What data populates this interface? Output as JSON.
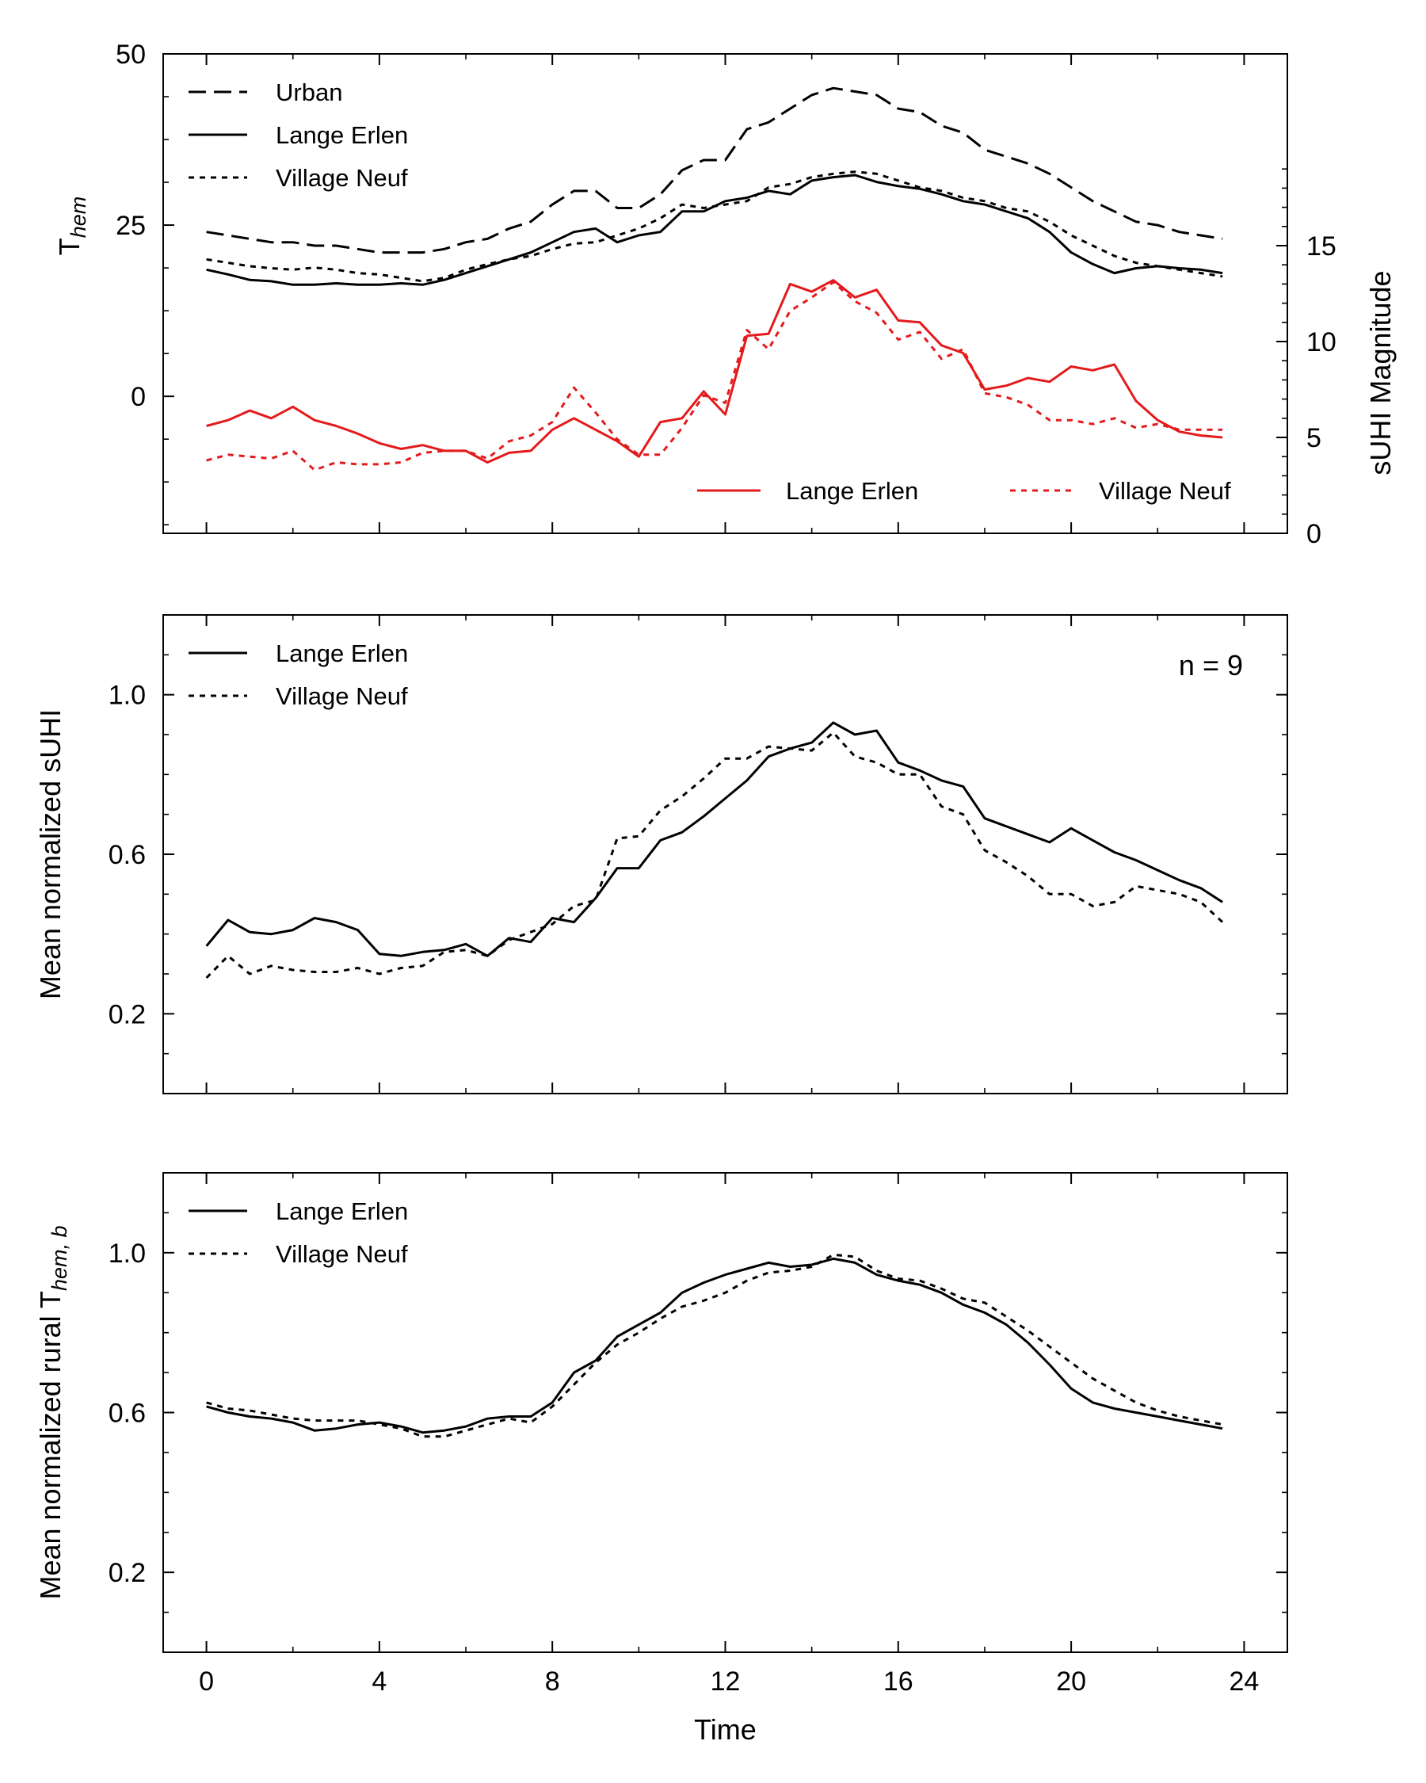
{
  "chart_data": [
    {
      "type": "line",
      "title": "",
      "xlabel": "",
      "ylabel": "T",
      "ylabel_sub": "hem",
      "y2label": "sUHI Magnitude",
      "xlim": [
        -1,
        25
      ],
      "ylim": [
        -20,
        50
      ],
      "y2lim": [
        0,
        25
      ],
      "x_ticks": [
        0,
        4,
        8,
        12,
        16,
        20,
        24
      ],
      "y_ticks": [
        0,
        25,
        50
      ],
      "y2_ticks": [
        0,
        5,
        10,
        15
      ],
      "x": [
        0,
        0.5,
        1,
        1.5,
        2,
        2.5,
        3,
        3.5,
        4,
        4.5,
        5,
        5.5,
        6,
        6.5,
        7,
        7.5,
        8,
        8.5,
        9,
        9.5,
        10,
        10.5,
        11,
        11.5,
        12,
        12.5,
        13,
        13.5,
        14,
        14.5,
        15,
        15.5,
        16,
        16.5,
        17,
        17.5,
        18,
        18.5,
        19,
        19.5,
        20,
        20.5,
        21,
        21.5,
        22,
        22.5,
        23,
        23.5
      ],
      "series": [
        {
          "name": "Urban",
          "axis": "left",
          "color": "#000000",
          "style": "dashed",
          "values": [
            24,
            23.5,
            23,
            22.5,
            22.5,
            22,
            22,
            21.5,
            21,
            21,
            21,
            21.5,
            22.5,
            23,
            24.5,
            25.5,
            28,
            30,
            30,
            27.5,
            27.5,
            29.5,
            33,
            34.5,
            34.5,
            39,
            40,
            42,
            44,
            45,
            44.5,
            44,
            42,
            41.5,
            39.5,
            38.5,
            36,
            35,
            34,
            32.5,
            30.5,
            28.5,
            27,
            25.5,
            25,
            24,
            23.5,
            23
          ]
        },
        {
          "name": "Lange Erlen",
          "axis": "left",
          "color": "#000000",
          "style": "solid",
          "values": [
            18.5,
            17.8,
            17,
            16.8,
            16.3,
            16.3,
            16.5,
            16.3,
            16.3,
            16.5,
            16.3,
            17,
            18,
            19,
            20,
            21,
            22.5,
            24,
            24.5,
            22.5,
            23.5,
            24,
            27,
            27,
            28.5,
            29,
            30,
            29.5,
            31.5,
            32,
            32.3,
            31.3,
            30.7,
            30.3,
            29.5,
            28.5,
            28,
            27,
            26,
            24,
            21,
            19.3,
            18,
            18.7,
            19,
            18.7,
            18.5,
            18
          ]
        },
        {
          "name": "Village Neuf",
          "axis": "left",
          "color": "#000000",
          "style": "dotted",
          "values": [
            20,
            19.5,
            19,
            18.7,
            18.5,
            18.8,
            18.5,
            18,
            17.8,
            17.3,
            16.8,
            17.3,
            18.5,
            19.3,
            20,
            20.5,
            21.5,
            22.3,
            22.5,
            23.5,
            24.5,
            26,
            28,
            27.5,
            28,
            28.5,
            30.5,
            31,
            32,
            32.5,
            32.8,
            32.5,
            31.5,
            30.5,
            30,
            29,
            28.5,
            27.5,
            27,
            25.5,
            23.5,
            22,
            20.5,
            19.5,
            19,
            18.5,
            18,
            17.5
          ]
        },
        {
          "name": "Lange Erlen",
          "axis": "right",
          "color": "#e41a1c",
          "style": "solid",
          "values": [
            5.6,
            5.9,
            6.4,
            6,
            6.6,
            5.9,
            5.6,
            5.2,
            4.7,
            4.4,
            4.6,
            4.3,
            4.3,
            3.7,
            4.2,
            4.3,
            5.4,
            6,
            5.4,
            4.8,
            4,
            5.8,
            6,
            7.4,
            6.2,
            10.3,
            10.4,
            13,
            12.6,
            13.2,
            12.3,
            12.7,
            11.1,
            11,
            9.8,
            9.4,
            7.5,
            7.7,
            8.1,
            7.9,
            8.7,
            8.5,
            8.8,
            6.9,
            5.9,
            5.3,
            5.1,
            5
          ]
        },
        {
          "name": "Village Neuf",
          "axis": "right",
          "color": "#e41a1c",
          "style": "dotted",
          "values": [
            3.8,
            4.1,
            4,
            3.9,
            4.3,
            3.3,
            3.7,
            3.6,
            3.6,
            3.7,
            4.2,
            4.3,
            4.3,
            3.9,
            4.8,
            5.1,
            5.8,
            7.6,
            6.3,
            4.9,
            4.1,
            4.1,
            5.5,
            7.2,
            6.8,
            10.6,
            9.6,
            11.6,
            12.3,
            13.1,
            12.1,
            11.5,
            10.1,
            10.5,
            9.1,
            9.6,
            7.3,
            7.1,
            6.7,
            5.9,
            5.9,
            5.7,
            6,
            5.5,
            5.7,
            5.4,
            5.4,
            5.4
          ]
        }
      ],
      "legend": [
        {
          "label": "Urban",
          "placement": "top-left"
        },
        {
          "label": "Lange Erlen",
          "placement": "top-left"
        },
        {
          "label": "Village Neuf",
          "placement": "top-left"
        },
        {
          "label": "Lange Erlen",
          "placement": "bottom-right"
        },
        {
          "label": "Village Neuf",
          "placement": "bottom-right"
        }
      ]
    },
    {
      "type": "line",
      "title": "",
      "xlabel": "",
      "ylabel": "Mean normalized sUHI",
      "annotation": "n = 9",
      "xlim": [
        -1,
        25
      ],
      "ylim": [
        0,
        1.2
      ],
      "x_ticks": [
        0,
        4,
        8,
        12,
        16,
        20,
        24
      ],
      "y_ticks": [
        0.2,
        0.6,
        1.0
      ],
      "y_tick_labels": [
        "0.2",
        "0.6",
        "1.0"
      ],
      "x": [
        0,
        0.5,
        1,
        1.5,
        2,
        2.5,
        3,
        3.5,
        4,
        4.5,
        5,
        5.5,
        6,
        6.5,
        7,
        7.5,
        8,
        8.5,
        9,
        9.5,
        10,
        10.5,
        11,
        11.5,
        12,
        12.5,
        13,
        13.5,
        14,
        14.5,
        15,
        15.5,
        16,
        16.5,
        17,
        17.5,
        18,
        18.5,
        19,
        19.5,
        20,
        20.5,
        21,
        21.5,
        22,
        22.5,
        23,
        23.5
      ],
      "series": [
        {
          "name": "Lange Erlen",
          "color": "#000000",
          "style": "solid",
          "values": [
            0.37,
            0.435,
            0.405,
            0.4,
            0.41,
            0.44,
            0.43,
            0.41,
            0.35,
            0.345,
            0.355,
            0.36,
            0.375,
            0.345,
            0.39,
            0.38,
            0.44,
            0.43,
            0.49,
            0.565,
            0.565,
            0.635,
            0.655,
            0.695,
            0.74,
            0.785,
            0.845,
            0.865,
            0.88,
            0.93,
            0.9,
            0.91,
            0.83,
            0.81,
            0.785,
            0.77,
            0.69,
            0.67,
            0.65,
            0.63,
            0.665,
            0.635,
            0.605,
            0.585,
            0.56,
            0.535,
            0.515,
            0.48
          ]
        },
        {
          "name": "Village Neuf",
          "color": "#000000",
          "style": "dotted",
          "values": [
            0.29,
            0.345,
            0.3,
            0.32,
            0.31,
            0.305,
            0.305,
            0.315,
            0.3,
            0.315,
            0.32,
            0.355,
            0.36,
            0.345,
            0.385,
            0.405,
            0.425,
            0.47,
            0.485,
            0.64,
            0.645,
            0.71,
            0.745,
            0.79,
            0.84,
            0.84,
            0.87,
            0.865,
            0.86,
            0.905,
            0.845,
            0.83,
            0.8,
            0.8,
            0.72,
            0.7,
            0.61,
            0.58,
            0.545,
            0.5,
            0.5,
            0.47,
            0.48,
            0.52,
            0.51,
            0.5,
            0.48,
            0.43
          ]
        }
      ],
      "legend": [
        {
          "label": "Lange Erlen",
          "placement": "top-left"
        },
        {
          "label": "Village Neuf",
          "placement": "top-left"
        }
      ]
    },
    {
      "type": "line",
      "title": "",
      "xlabel": "Time",
      "ylabel": "Mean normalized rural T",
      "ylabel_sub": "hem, b",
      "xlim": [
        -1,
        25
      ],
      "ylim": [
        0,
        1.2
      ],
      "x_ticks": [
        0,
        4,
        8,
        12,
        16,
        20,
        24
      ],
      "y_ticks": [
        0.2,
        0.6,
        1.0
      ],
      "y_tick_labels": [
        "0.2",
        "0.6",
        "1.0"
      ],
      "x": [
        0,
        0.5,
        1,
        1.5,
        2,
        2.5,
        3,
        3.5,
        4,
        4.5,
        5,
        5.5,
        6,
        6.5,
        7,
        7.5,
        8,
        8.5,
        9,
        9.5,
        10,
        10.5,
        11,
        11.5,
        12,
        12.5,
        13,
        13.5,
        14,
        14.5,
        15,
        15.5,
        16,
        16.5,
        17,
        17.5,
        18,
        18.5,
        19,
        19.5,
        20,
        20.5,
        21,
        21.5,
        22,
        22.5,
        23,
        23.5
      ],
      "series": [
        {
          "name": "Lange Erlen",
          "color": "#000000",
          "style": "solid",
          "values": [
            0.615,
            0.6,
            0.59,
            0.585,
            0.575,
            0.555,
            0.56,
            0.57,
            0.575,
            0.565,
            0.55,
            0.555,
            0.565,
            0.585,
            0.59,
            0.59,
            0.625,
            0.7,
            0.73,
            0.79,
            0.82,
            0.85,
            0.9,
            0.925,
            0.945,
            0.96,
            0.975,
            0.965,
            0.97,
            0.985,
            0.975,
            0.945,
            0.93,
            0.92,
            0.9,
            0.87,
            0.85,
            0.82,
            0.775,
            0.72,
            0.66,
            0.625,
            0.61,
            0.6,
            0.59,
            0.58,
            0.57,
            0.56
          ]
        },
        {
          "name": "Village Neuf",
          "color": "#000000",
          "style": "dotted",
          "values": [
            0.625,
            0.61,
            0.605,
            0.595,
            0.585,
            0.58,
            0.58,
            0.58,
            0.57,
            0.56,
            0.54,
            0.54,
            0.555,
            0.57,
            0.585,
            0.575,
            0.615,
            0.67,
            0.725,
            0.77,
            0.8,
            0.835,
            0.865,
            0.88,
            0.9,
            0.93,
            0.95,
            0.955,
            0.965,
            0.995,
            0.99,
            0.955,
            0.935,
            0.93,
            0.91,
            0.885,
            0.875,
            0.84,
            0.805,
            0.765,
            0.725,
            0.685,
            0.655,
            0.625,
            0.605,
            0.59,
            0.58,
            0.57
          ]
        }
      ],
      "legend": [
        {
          "label": "Lange Erlen",
          "placement": "top-left"
        },
        {
          "label": "Village Neuf",
          "placement": "top-left"
        }
      ]
    }
  ]
}
